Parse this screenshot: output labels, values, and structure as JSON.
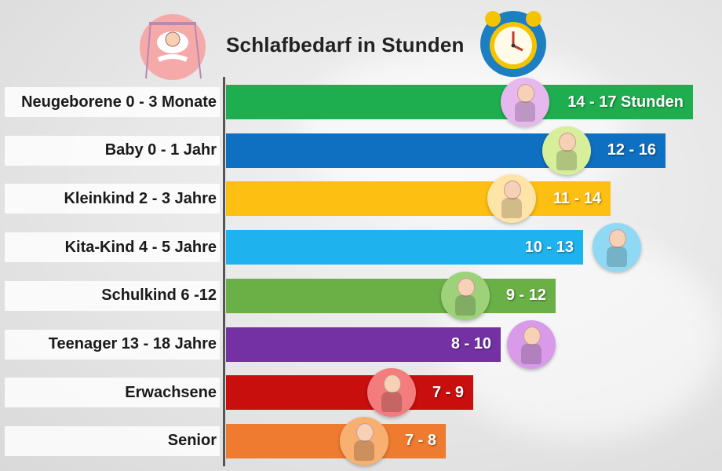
{
  "chart_data": {
    "type": "bar",
    "orientation": "horizontal",
    "title": "Schlafbedarf in Stunden",
    "xlabel": "",
    "ylabel": "",
    "xlim": [
      0,
      17.5
    ],
    "grid": false,
    "categories": [
      "Neugeborene 0 - 3 Monate",
      "Baby 0 - 1 Jahr",
      "Kleinkind 2 - 3 Jahre",
      "Kita-Kind 4 - 5 Jahre",
      "Schulkind 6 -12",
      "Teenager 13 - 18 Jahre",
      "Erwachsene",
      "Senior"
    ],
    "ranges": [
      [
        14,
        17
      ],
      [
        12,
        16
      ],
      [
        11,
        14
      ],
      [
        10,
        13
      ],
      [
        9,
        12
      ],
      [
        8,
        10
      ],
      [
        7,
        9
      ],
      [
        7,
        8
      ]
    ],
    "values": [
      17,
      16,
      14,
      13,
      12,
      10,
      9,
      8
    ],
    "data_labels": [
      "14 - 17 Stunden",
      "12 - 16",
      "11 - 14",
      "10 - 13",
      "9 - 12",
      "8 - 10",
      "7 - 9",
      "7 - 8"
    ],
    "colors": [
      "#1fae4f",
      "#0f6fc0",
      "#fdbf12",
      "#1eb3ee",
      "#6ab046",
      "#7431a3",
      "#c90e0e",
      "#ee7b2f"
    ],
    "avatar_colors": [
      "#e7b8ee",
      "#d7ee9a",
      "#ffe4a8",
      "#8fd9f5",
      "#9ed27a",
      "#d99be9",
      "#f37c7c",
      "#f8b070"
    ],
    "icons": [
      "sleeping-baby-icon",
      "alarm-clock-icon",
      "newborn-icon",
      "baby-icon",
      "toddler-icon",
      "kita-child-icon",
      "school-child-icon",
      "teenager-icon",
      "adult-icon",
      "senior-icon"
    ]
  }
}
